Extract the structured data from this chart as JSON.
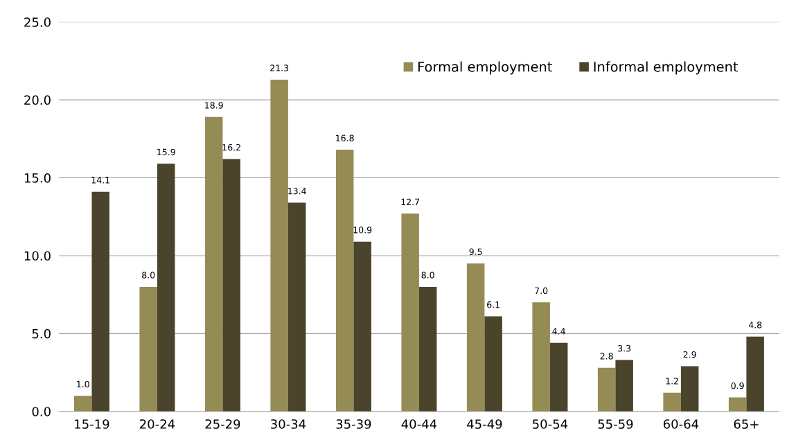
{
  "chart_data": {
    "type": "bar",
    "categories": [
      "15-19",
      "20-24",
      "25-29",
      "30-34",
      "35-39",
      "40-44",
      "45-49",
      "50-54",
      "55-59",
      "60-64",
      "65+"
    ],
    "series": [
      {
        "name": "Formal employment",
        "color": "#958b55",
        "values": [
          1.0,
          8.0,
          18.9,
          21.3,
          16.8,
          12.7,
          9.5,
          7.0,
          2.8,
          1.2,
          0.9
        ],
        "value_labels": [
          "1.0",
          "8.0",
          "18.9",
          "21.3",
          "16.8",
          "12.7",
          "9.5",
          "7.0",
          "2.8",
          "1.2",
          "0.9"
        ]
      },
      {
        "name": "Informal employment",
        "color": "#4a442d",
        "values": [
          14.1,
          15.9,
          16.2,
          13.4,
          10.9,
          8.0,
          6.1,
          4.4,
          3.3,
          2.9,
          4.8
        ],
        "value_labels": [
          "14.1",
          "15.9",
          "16.2",
          "13.4",
          "10.9",
          "8.0",
          "6.1",
          "4.4",
          "3.3",
          "2.9",
          "4.8"
        ]
      }
    ],
    "ylim": [
      0,
      25
    ],
    "yticks": [
      {
        "value": 0,
        "label": "0.0"
      },
      {
        "value": 5,
        "label": "5.0"
      },
      {
        "value": 10,
        "label": "10.0"
      },
      {
        "value": 15,
        "label": "15.0"
      },
      {
        "value": 20,
        "label": "20.0"
      },
      {
        "value": 25,
        "label": "25.0"
      }
    ],
    "grid": "y",
    "legend": "top right"
  }
}
